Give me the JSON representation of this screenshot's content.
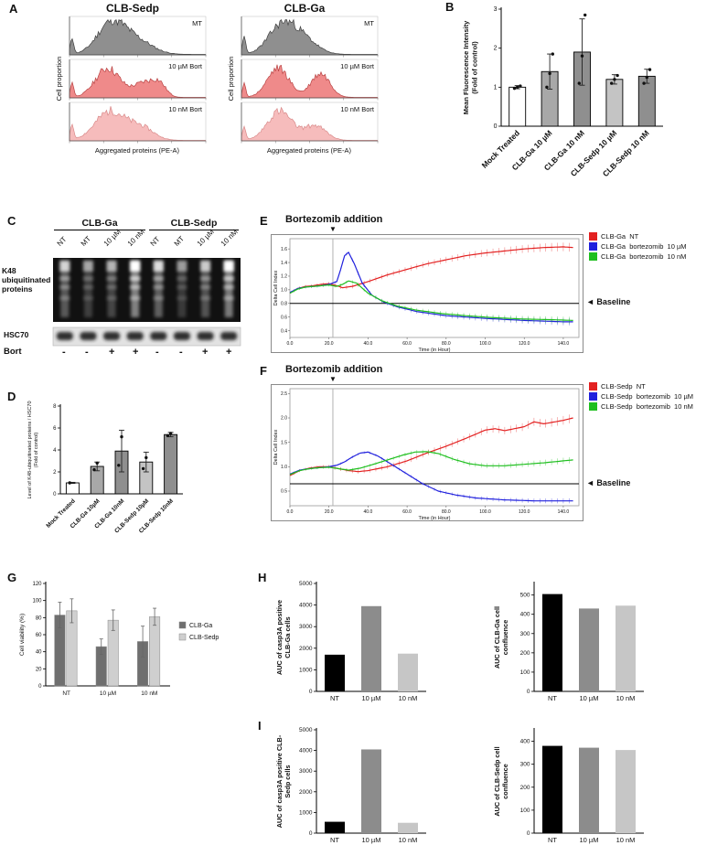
{
  "labels": {
    "A": "A",
    "B": "B",
    "C": "C",
    "D": "D",
    "E": "E",
    "F": "F",
    "G": "G",
    "H": "H",
    "I": "I"
  },
  "panelA": {
    "plots": [
      {
        "title": "CLB-Sedp",
        "ylabel": "Cell proportion",
        "xlabel": "Aggregated proteins (PE-A)",
        "rows": [
          {
            "label": "MT",
            "color": "#8f8f8f",
            "edge": "#3f3f3f",
            "peaks": [
              [
                0.02,
                0.012,
                0.55
              ],
              [
                0.3,
                0.1,
                1.0
              ],
              [
                0.48,
                0.12,
                0.5
              ]
            ]
          },
          {
            "label": "10 µM Bort",
            "color": "#ef8a8a",
            "edge": "#b94444",
            "peaks": [
              [
                0.02,
                0.012,
                0.5
              ],
              [
                0.28,
                0.09,
                1.0
              ],
              [
                0.55,
                0.08,
                0.5
              ],
              [
                0.66,
                0.05,
                0.38
              ]
            ]
          },
          {
            "label": "10 nM Bort",
            "color": "#f6bcbc",
            "edge": "#d98a8a",
            "peaks": [
              [
                0.02,
                0.012,
                0.5
              ],
              [
                0.3,
                0.11,
                1.0
              ],
              [
                0.53,
                0.09,
                0.42
              ]
            ]
          }
        ]
      },
      {
        "title": "CLB-Ga",
        "ylabel": "Cell proportion",
        "xlabel": "Aggregated proteins (PE-A)",
        "rows": [
          {
            "label": "MT",
            "color": "#8f8f8f",
            "edge": "#3f3f3f",
            "peaks": [
              [
                0.02,
                0.012,
                0.55
              ],
              [
                0.3,
                0.1,
                1.0
              ],
              [
                0.46,
                0.1,
                0.45
              ]
            ]
          },
          {
            "label": "10 µM Bort",
            "color": "#ef8a8a",
            "edge": "#b94444",
            "peaks": [
              [
                0.02,
                0.012,
                0.5
              ],
              [
                0.27,
                0.08,
                1.0
              ],
              [
                0.58,
                0.07,
                0.82
              ]
            ]
          },
          {
            "label": "10 nM Bort",
            "color": "#f6bcbc",
            "edge": "#d98a8a",
            "peaks": [
              [
                0.02,
                0.012,
                0.5
              ],
              [
                0.28,
                0.09,
                1.0
              ],
              [
                0.54,
                0.08,
                0.5
              ]
            ]
          }
        ]
      }
    ]
  },
  "panelB": {
    "chart_data": {
      "type": "bar",
      "ylabel": "Mean Fluorescence Intensity\n(Fold of control)",
      "categories": [
        "Mock Treated",
        "CLB-Ga 10 µM",
        "CLB-Ga 10 nM",
        "CLB-Sedp 10 µM",
        "CLB-Sedp 10 nM"
      ],
      "values": [
        1.0,
        1.4,
        1.9,
        1.2,
        1.28
      ],
      "errors": [
        0.04,
        0.45,
        0.85,
        0.12,
        0.18
      ],
      "points": [
        [
          0.97,
          1.0,
          1.03
        ],
        [
          1.0,
          1.35,
          1.85
        ],
        [
          1.1,
          1.8,
          2.85
        ],
        [
          1.1,
          1.2,
          1.3
        ],
        [
          1.1,
          1.25,
          1.45
        ]
      ],
      "bar_colors": [
        "#ffffff",
        "#a8a8a8",
        "#8f8f8f",
        "#c4c4c4",
        "#8f8f8f"
      ],
      "ylim": [
        0,
        3
      ],
      "yticks": [
        0,
        1,
        2,
        3
      ]
    }
  },
  "panelC": {
    "group_labels": [
      "CLB-Ga",
      "CLB-Sedp"
    ],
    "lane_labels": [
      "NT",
      "MT",
      "10 µM",
      "10 nM",
      "NT",
      "MT",
      "10 µM",
      "10 nM"
    ],
    "row_labels": [
      "K48 ubiquitinated proteins",
      "HSC70",
      "Bort"
    ],
    "bort_signs": [
      "-",
      "-",
      "+",
      "+",
      "-",
      "-",
      "+",
      "+"
    ],
    "lane_intensities": [
      0.55,
      0.35,
      0.4,
      0.85,
      0.6,
      0.3,
      0.5,
      0.8
    ]
  },
  "panelD": {
    "chart_data": {
      "type": "bar",
      "ylabel": "Level of K48-ubiquitinated proteins / HSC70\n(Fold of control)",
      "categories": [
        "Mock Treated",
        "CLB-Ga 10µM",
        "CLB-Ga 10nM",
        "CLB-Sedp 10µM",
        "CLB-Sedp 10nM"
      ],
      "values": [
        1.0,
        2.5,
        3.9,
        2.9,
        5.4
      ],
      "errors": [
        0.05,
        0.4,
        1.9,
        0.9,
        0.2
      ],
      "points": [
        [
          1.0
        ],
        [
          2.2,
          2.8
        ],
        [
          2.6,
          5.2
        ],
        [
          2.3,
          3.3
        ],
        [
          5.3,
          5.5
        ]
      ],
      "bar_colors": [
        "#ffffff",
        "#a8a8a8",
        "#8f8f8f",
        "#c4c4c4",
        "#8f8f8f"
      ],
      "ylim": [
        0,
        8
      ],
      "yticks": [
        0,
        2,
        4,
        6,
        8
      ]
    }
  },
  "panelE": {
    "title": "Bortezomib addition",
    "arrow_icon": "▼",
    "baseline_label": "◄ Baseline",
    "chart_data": {
      "type": "line",
      "xlabel": "Time (in Hour)",
      "ylabel": "Delta Cell Index",
      "xlim": [
        0,
        148
      ],
      "xticks": [
        0,
        20,
        40,
        60,
        80,
        100,
        120,
        140
      ],
      "ylim": [
        0.3,
        1.75
      ],
      "yticks": [
        0.4,
        0.6,
        0.8,
        1.0,
        1.2,
        1.4,
        1.6
      ],
      "addition_x": 22,
      "baseline_y": 0.8,
      "series": [
        {
          "name": "CLB-Ga  NT",
          "color": "#e32121",
          "err": 0.05,
          "x": [
            0,
            4,
            8,
            12,
            16,
            20,
            24,
            27,
            32,
            40,
            50,
            60,
            70,
            80,
            90,
            100,
            110,
            120,
            130,
            140,
            145
          ],
          "y": [
            0.95,
            1.02,
            1.05,
            1.06,
            1.08,
            1.09,
            1.06,
            1.03,
            1.05,
            1.12,
            1.22,
            1.3,
            1.38,
            1.44,
            1.5,
            1.54,
            1.57,
            1.6,
            1.62,
            1.63,
            1.62
          ]
        },
        {
          "name": "CLB-Ga  bortezomib  10 µM",
          "color": "#2121dd",
          "err": 0.04,
          "x": [
            0,
            4,
            8,
            12,
            16,
            20,
            24,
            26,
            28,
            30,
            33,
            37,
            42,
            48,
            55,
            65,
            80,
            100,
            120,
            140,
            145
          ],
          "y": [
            0.96,
            1.02,
            1.04,
            1.05,
            1.06,
            1.08,
            1.12,
            1.3,
            1.5,
            1.55,
            1.38,
            1.1,
            0.92,
            0.82,
            0.75,
            0.68,
            0.62,
            0.58,
            0.55,
            0.53,
            0.53
          ]
        },
        {
          "name": "CLB-Ga  bortezomib  10 nM",
          "color": "#1fbf1f",
          "err": 0.04,
          "x": [
            0,
            4,
            8,
            12,
            16,
            20,
            24,
            27,
            30,
            34,
            40,
            47,
            55,
            65,
            78,
            90,
            105,
            120,
            135,
            145
          ],
          "y": [
            0.95,
            1.01,
            1.04,
            1.05,
            1.06,
            1.07,
            1.05,
            1.08,
            1.13,
            1.1,
            0.95,
            0.84,
            0.76,
            0.7,
            0.65,
            0.62,
            0.59,
            0.57,
            0.56,
            0.55
          ]
        }
      ]
    }
  },
  "panelF": {
    "title": "Bortezomib addition",
    "arrow_icon": "▼",
    "baseline_label": "◄ Baseline",
    "chart_data": {
      "type": "line",
      "xlabel": "Time (in Hour)",
      "ylabel": "Delta Cell Index",
      "xlim": [
        0,
        148
      ],
      "xticks": [
        0,
        20,
        40,
        60,
        80,
        100,
        120,
        140
      ],
      "ylim": [
        0.2,
        2.6
      ],
      "yticks": [
        0.5,
        1.0,
        1.5,
        2.0,
        2.5
      ],
      "addition_x": 22,
      "baseline_y": 0.65,
      "series": [
        {
          "name": "CLB-Sedp  NT",
          "color": "#e32121",
          "err": 0.07,
          "x": [
            0,
            5,
            10,
            15,
            20,
            25,
            30,
            35,
            40,
            50,
            60,
            70,
            80,
            90,
            100,
            105,
            110,
            120,
            125,
            130,
            140,
            145
          ],
          "y": [
            0.82,
            0.92,
            0.97,
            1.0,
            1.0,
            0.96,
            0.92,
            0.9,
            0.92,
            1.0,
            1.12,
            1.28,
            1.42,
            1.58,
            1.75,
            1.78,
            1.74,
            1.82,
            1.92,
            1.88,
            1.95,
            2.0
          ]
        },
        {
          "name": "CLB-Sedp  bortezomib  10 µM",
          "color": "#2121dd",
          "err": 0.04,
          "x": [
            0,
            5,
            10,
            15,
            20,
            24,
            28,
            32,
            36,
            40,
            45,
            52,
            60,
            68,
            76,
            85,
            95,
            110,
            125,
            145
          ],
          "y": [
            0.85,
            0.93,
            0.96,
            0.98,
            1.0,
            1.03,
            1.1,
            1.2,
            1.28,
            1.3,
            1.22,
            1.05,
            0.85,
            0.65,
            0.5,
            0.42,
            0.36,
            0.32,
            0.3,
            0.3
          ]
        },
        {
          "name": "CLB-Sedp  bortezomib  10 nM",
          "color": "#1fbf1f",
          "err": 0.05,
          "x": [
            0,
            5,
            10,
            15,
            20,
            25,
            30,
            36,
            42,
            50,
            58,
            64,
            70,
            76,
            84,
            92,
            100,
            110,
            120,
            130,
            140,
            145
          ],
          "y": [
            0.84,
            0.92,
            0.96,
            0.98,
            0.99,
            0.96,
            0.93,
            0.97,
            1.04,
            1.14,
            1.24,
            1.3,
            1.31,
            1.27,
            1.15,
            1.06,
            1.02,
            1.02,
            1.05,
            1.08,
            1.12,
            1.14
          ]
        }
      ]
    }
  },
  "panelG": {
    "chart_data": {
      "type": "bar",
      "ylabel": "Cell viability (%)",
      "categories": [
        "NT",
        "10 µM",
        "10 nM"
      ],
      "series": [
        {
          "name": "CLB-Ga",
          "color": "#6f6f6f",
          "values": [
            83,
            46,
            52
          ],
          "errors": [
            15,
            9,
            18
          ]
        },
        {
          "name": "CLB-Sedp",
          "color": "#cfcfcf",
          "values": [
            88,
            77,
            81
          ],
          "errors": [
            14,
            12,
            10
          ]
        }
      ],
      "ylim": [
        0,
        120
      ],
      "yticks": [
        0,
        20,
        40,
        60,
        80,
        100,
        120
      ]
    }
  },
  "panelH": {
    "left": {
      "type": "bar",
      "ylabel": "AUC of casp3A positive\nCLB-Ga cells",
      "categories": [
        "NT",
        "10 µM",
        "10 nM"
      ],
      "values": [
        1700,
        3950,
        1750
      ],
      "bar_colors": [
        "#000000",
        "#8c8c8c",
        "#c6c6c6"
      ],
      "ylim": [
        0,
        5000
      ],
      "yticks": [
        0,
        1000,
        2000,
        3000,
        4000,
        5000
      ]
    },
    "right": {
      "type": "bar",
      "ylabel": "AUC of CLB-Ga cell\nconfluence",
      "categories": [
        "NT",
        "10 µM",
        "10 nM"
      ],
      "values": [
        505,
        430,
        445
      ],
      "bar_colors": [
        "#000000",
        "#8c8c8c",
        "#c6c6c6"
      ],
      "ylim": [
        0,
        560
      ],
      "yticks": [
        0,
        100,
        200,
        300,
        400,
        500
      ]
    }
  },
  "panelI": {
    "left": {
      "type": "bar",
      "ylabel": "AUC of casp3A positive CLB-\nSedp cells",
      "categories": [
        "NT",
        "10 µM",
        "10 nM"
      ],
      "values": [
        550,
        4050,
        500
      ],
      "bar_colors": [
        "#000000",
        "#8c8c8c",
        "#c6c6c6"
      ],
      "ylim": [
        0,
        5000
      ],
      "yticks": [
        0,
        1000,
        2000,
        3000,
        4000,
        5000
      ]
    },
    "right": {
      "type": "bar",
      "ylabel": "AUC of CLB-Sedp cell\nconfluence",
      "categories": [
        "NT",
        "10 µM",
        "10 nM"
      ],
      "values": [
        380,
        372,
        362
      ],
      "bar_colors": [
        "#000000",
        "#8c8c8c",
        "#c6c6c6"
      ],
      "ylim": [
        0,
        450
      ],
      "yticks": [
        0,
        100,
        200,
        300,
        400
      ]
    }
  }
}
